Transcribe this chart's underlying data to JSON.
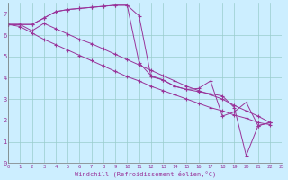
{
  "xlabel": "Windchill (Refroidissement éolien,°C)",
  "bg_color": "#cceeff",
  "line_color": "#993399",
  "grid_color": "#99cccc",
  "series": [
    [
      6.5,
      6.5,
      6.5,
      6.8,
      7.1,
      7.2,
      7.25,
      7.3,
      7.35,
      7.4,
      7.4,
      6.9,
      4.05,
      3.9,
      3.6,
      3.45,
      3.5,
      3.85,
      2.2,
      2.4,
      2.85,
      1.75,
      1.9
    ],
    [
      6.5,
      6.5,
      6.5,
      6.8,
      7.1,
      7.2,
      7.25,
      7.3,
      7.35,
      7.4,
      7.4,
      4.7,
      4.1,
      3.9,
      3.6,
      3.45,
      3.35,
      3.25,
      3.15,
      2.6,
      0.35,
      1.75,
      1.9
    ],
    [
      6.5,
      6.5,
      6.2,
      6.55,
      6.3,
      6.05,
      5.8,
      5.6,
      5.35,
      5.1,
      4.85,
      4.6,
      4.35,
      4.1,
      3.85,
      3.6,
      3.4,
      3.2,
      3.0,
      2.7,
      2.45,
      2.2,
      1.9
    ],
    [
      6.5,
      6.4,
      6.1,
      5.8,
      5.55,
      5.3,
      5.05,
      4.8,
      4.55,
      4.3,
      4.05,
      3.85,
      3.6,
      3.4,
      3.2,
      3.0,
      2.8,
      2.6,
      2.45,
      2.25,
      2.1,
      1.9,
      1.8
    ]
  ],
  "x_min": 0,
  "x_max": 23,
  "y_min": 0,
  "y_max": 8,
  "y_top_limit": 7.5,
  "x_ticks": [
    0,
    1,
    2,
    3,
    4,
    5,
    6,
    7,
    8,
    9,
    10,
    11,
    12,
    13,
    14,
    15,
    16,
    17,
    18,
    19,
    20,
    21,
    22,
    23
  ],
  "y_ticks": [
    0,
    1,
    2,
    3,
    4,
    5,
    6,
    7
  ]
}
